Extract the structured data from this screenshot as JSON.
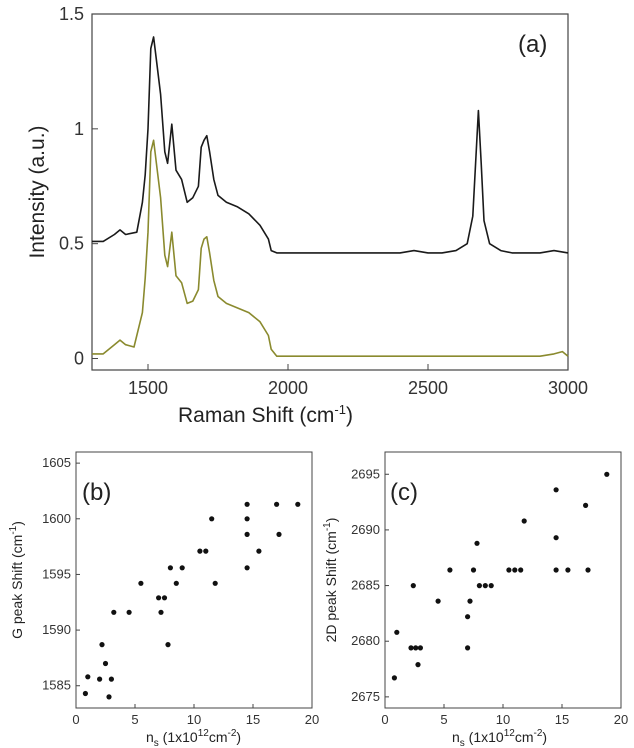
{
  "chart_data": [
    {
      "panel_label": "(a)",
      "type": "line",
      "xlabel": "Raman Shift (cm",
      "xlabel_sup": "-1",
      "xlabel_tail": ")",
      "ylabel": "Intensity (a.u.)",
      "xlim": [
        1300,
        3000
      ],
      "ylim": [
        -0.05,
        1.5
      ],
      "xticks": [
        "1500",
        "2000",
        "2500",
        "3000"
      ],
      "yticks": [
        "0",
        "0.5",
        "1",
        "1.5"
      ],
      "colors": {
        "upper": "#1a1a1a",
        "lower": "#8a8a2e"
      },
      "series": [
        {
          "x": [
            1300,
            1340,
            1380,
            1400,
            1420,
            1460,
            1480,
            1490,
            1500,
            1510,
            1520,
            1530,
            1545,
            1560,
            1570,
            1585,
            1600,
            1620,
            1640,
            1660,
            1680,
            1690,
            1700,
            1710,
            1720,
            1735,
            1750,
            1780,
            1820,
            1860,
            1900,
            1930,
            1940,
            1960,
            2000,
            2100,
            2200,
            2300,
            2400,
            2450,
            2500,
            2550,
            2600,
            2640,
            2660,
            2670,
            2680,
            2690,
            2700,
            2720,
            2760,
            2800,
            2900,
            2950,
            3000
          ],
          "y": [
            0.51,
            0.51,
            0.54,
            0.56,
            0.54,
            0.55,
            0.68,
            0.8,
            1.0,
            1.35,
            1.4,
            1.3,
            1.15,
            0.9,
            0.85,
            1.02,
            0.82,
            0.78,
            0.68,
            0.7,
            0.75,
            0.92,
            0.95,
            0.97,
            0.9,
            0.78,
            0.71,
            0.68,
            0.66,
            0.63,
            0.58,
            0.52,
            0.47,
            0.46,
            0.46,
            0.46,
            0.46,
            0.46,
            0.46,
            0.47,
            0.46,
            0.46,
            0.47,
            0.5,
            0.62,
            0.85,
            1.08,
            0.85,
            0.6,
            0.5,
            0.47,
            0.46,
            0.46,
            0.47,
            0.46
          ]
        },
        {
          "x": [
            1300,
            1340,
            1380,
            1400,
            1420,
            1450,
            1480,
            1490,
            1500,
            1510,
            1520,
            1530,
            1545,
            1560,
            1570,
            1585,
            1600,
            1620,
            1640,
            1660,
            1680,
            1690,
            1700,
            1710,
            1720,
            1735,
            1750,
            1780,
            1820,
            1860,
            1900,
            1930,
            1940,
            1960,
            2000,
            2100,
            2200,
            2300,
            2400,
            2500,
            2600,
            2700,
            2800,
            2900,
            2950,
            2980,
            3000
          ],
          "y": [
            0.02,
            0.02,
            0.06,
            0.08,
            0.06,
            0.05,
            0.2,
            0.35,
            0.55,
            0.9,
            0.95,
            0.85,
            0.7,
            0.45,
            0.4,
            0.55,
            0.36,
            0.33,
            0.24,
            0.25,
            0.3,
            0.48,
            0.52,
            0.53,
            0.46,
            0.34,
            0.27,
            0.24,
            0.22,
            0.2,
            0.16,
            0.1,
            0.04,
            0.01,
            0.01,
            0.01,
            0.01,
            0.01,
            0.01,
            0.01,
            0.01,
            0.01,
            0.01,
            0.01,
            0.02,
            0.03,
            0.01
          ]
        }
      ]
    },
    {
      "panel_label": "(b)",
      "type": "scatter",
      "xlabel": "n",
      "xlabel_sub": "s",
      "xlabel_tail": " (1x10",
      "xlabel_sup": "12",
      "xlabel_tail2": "cm",
      "xlabel_sup2": "-2",
      "xlabel_end": ")",
      "ylabel": "G peak Shift (cm",
      "ylabel_sup": "-1",
      "ylabel_end": ")",
      "xlim": [
        0,
        20
      ],
      "ylim": [
        1583,
        1606
      ],
      "xticks": [
        "0",
        "5",
        "10",
        "15",
        "20"
      ],
      "yticks": [
        "1585",
        "1590",
        "1595",
        "1600",
        "1605"
      ],
      "x": [
        0.8,
        1.0,
        2.0,
        2.2,
        2.5,
        2.8,
        3.0,
        3.2,
        4.5,
        5.5,
        7.0,
        7.2,
        7.5,
        7.8,
        8.0,
        8.5,
        9.0,
        10.5,
        11.0,
        11.5,
        11.8,
        14.5,
        14.5,
        14.5,
        14.5,
        15.5,
        17.0,
        17.2,
        18.8
      ],
      "y": [
        1584.3,
        1585.8,
        1585.6,
        1588.7,
        1587.0,
        1584.0,
        1585.6,
        1591.6,
        1591.6,
        1594.2,
        1592.9,
        1591.6,
        1592.9,
        1588.7,
        1595.6,
        1594.2,
        1595.6,
        1597.1,
        1597.1,
        1600.0,
        1594.2,
        1601.3,
        1600.0,
        1598.6,
        1595.6,
        1597.1,
        1601.3,
        1598.6,
        1601.3
      ]
    },
    {
      "panel_label": "(c)",
      "type": "scatter",
      "xlabel": "n",
      "xlabel_sub": "s",
      "xlabel_tail": " (1x10",
      "xlabel_sup": "12",
      "xlabel_tail2": "cm",
      "xlabel_sup2": "-2",
      "xlabel_end": ")",
      "ylabel": "2D peak Shift (cm",
      "ylabel_sup": "-1",
      "ylabel_end": ")",
      "xlim": [
        0,
        20
      ],
      "ylim": [
        2674,
        2697
      ],
      "xticks": [
        "0",
        "5",
        "10",
        "15",
        "20"
      ],
      "yticks": [
        "2675",
        "2680",
        "2685",
        "2690",
        "2695"
      ],
      "x": [
        0.8,
        1.0,
        2.2,
        2.4,
        2.6,
        2.8,
        3.0,
        4.5,
        5.5,
        7.0,
        7.0,
        7.2,
        7.5,
        7.8,
        8.0,
        8.5,
        9.0,
        10.5,
        11.0,
        11.5,
        11.8,
        14.5,
        14.5,
        14.5,
        15.5,
        17.0,
        17.2,
        18.8
      ],
      "y": [
        2676.7,
        2680.8,
        2679.4,
        2685.0,
        2679.4,
        2677.9,
        2679.4,
        2683.6,
        2686.4,
        2682.2,
        2679.4,
        2683.6,
        2686.4,
        2688.8,
        2685.0,
        2685.0,
        2685.0,
        2686.4,
        2686.4,
        2686.4,
        2690.8,
        2693.6,
        2689.3,
        2686.4,
        2686.4,
        2692.2,
        2686.4,
        2695.0
      ]
    }
  ]
}
